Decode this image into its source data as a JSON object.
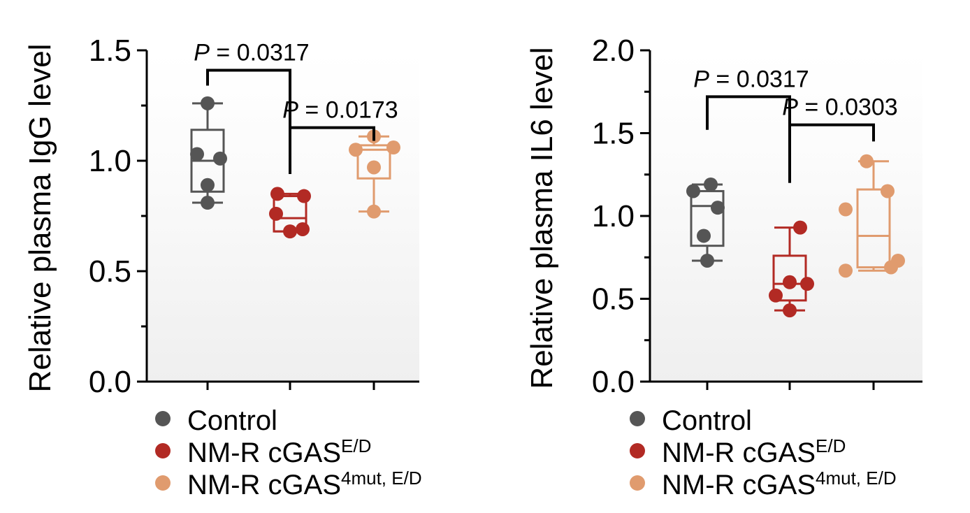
{
  "legend": {
    "items": [
      {
        "label": "Control",
        "superscript": "",
        "color": "#555555"
      },
      {
        "label": "NM-R cGAS",
        "superscript": "E/D",
        "color": "#B22A24"
      },
      {
        "label": "NM-R cGAS",
        "superscript": "4mut, E/D",
        "color": "#E09B6E"
      }
    ]
  },
  "chart_data": [
    {
      "type": "box",
      "ylabel": "Relative plasma IgG level",
      "ylim": [
        0,
        1.5
      ],
      "yticks": [
        "0.0",
        "0.5",
        "1.0",
        "1.5"
      ],
      "categories": [
        "Control",
        "NM-R cGAS E/D",
        "NM-R cGAS 4mut, E/D"
      ],
      "series": [
        {
          "color": "#555555",
          "points": [
            1.26,
            1.03,
            1.01,
            0.89,
            0.81
          ],
          "box": {
            "min": 0.81,
            "q1": 0.86,
            "median": 1.0,
            "q3": 1.14,
            "max": 1.26
          }
        },
        {
          "color": "#B22A24",
          "points": [
            0.85,
            0.84,
            0.76,
            0.69,
            0.68
          ],
          "box": {
            "min": 0.68,
            "q1": 0.68,
            "median": 0.74,
            "q3": 0.84,
            "max": 0.85
          }
        },
        {
          "color": "#E09B6E",
          "points": [
            1.11,
            1.05,
            1.06,
            0.97,
            0.77
          ],
          "box": {
            "min": 0.77,
            "q1": 0.92,
            "median": 1.05,
            "q3": 1.07,
            "max": 1.11
          }
        }
      ],
      "comparisons": [
        {
          "groups": [
            0,
            1
          ],
          "p_prefix": "P",
          "p_value": "= 0.0317",
          "bar_y": 1.41,
          "left_end": 1.34,
          "right_end": 0.94
        },
        {
          "groups": [
            1,
            2
          ],
          "p_prefix": "P",
          "p_value": "= 0.0173",
          "bar_y": 1.15,
          "left_end": 0.94,
          "right_end": 1.09
        }
      ]
    },
    {
      "type": "box",
      "ylabel": "Relative plasma IL6 level",
      "ylim": [
        0,
        2.0
      ],
      "yticks": [
        "0.0",
        "0.5",
        "1.0",
        "1.5",
        "2.0"
      ],
      "categories": [
        "Control",
        "NM-R cGAS E/D",
        "NM-R cGAS 4mut, E/D"
      ],
      "series": [
        {
          "color": "#555555",
          "points": [
            1.19,
            1.15,
            1.05,
            0.88,
            0.73
          ],
          "box": {
            "min": 0.73,
            "q1": 0.82,
            "median": 1.06,
            "q3": 1.15,
            "max": 1.19
          }
        },
        {
          "color": "#B22A24",
          "points": [
            0.93,
            0.6,
            0.59,
            0.52,
            0.43
          ],
          "box": {
            "min": 0.43,
            "q1": 0.49,
            "median": 0.59,
            "q3": 0.76,
            "max": 0.93
          }
        },
        {
          "color": "#E09B6E",
          "points": [
            1.33,
            1.15,
            1.04,
            0.73,
            0.69,
            0.67
          ],
          "box": {
            "min": 0.67,
            "q1": 0.69,
            "median": 0.88,
            "q3": 1.16,
            "max": 1.33
          }
        }
      ],
      "comparisons": [
        {
          "groups": [
            0,
            1
          ],
          "p_prefix": "P",
          "p_value": "= 0.0317",
          "bar_y": 1.72,
          "left_end": 1.52,
          "right_end": 1.2
        },
        {
          "groups": [
            1,
            2
          ],
          "p_prefix": "P",
          "p_value": "= 0.0303",
          "bar_y": 1.55,
          "left_end": 1.2,
          "right_end": 1.45
        }
      ]
    }
  ]
}
